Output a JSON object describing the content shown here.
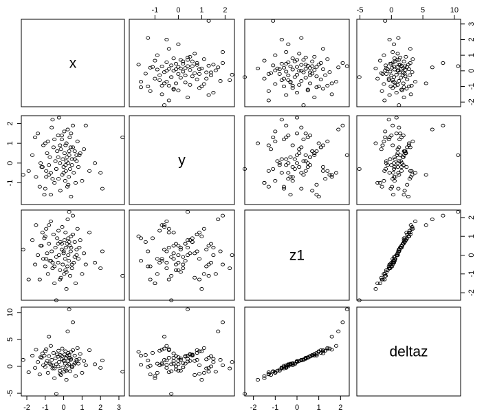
{
  "chart_data": {
    "type": "scatter",
    "variables": [
      "x",
      "y",
      "z1",
      "deltaz"
    ],
    "panel_labels": [
      "x",
      "y",
      "z1",
      "deltaz"
    ],
    "ranges": {
      "x": [
        -2.3,
        3.3
      ],
      "y": [
        -2.1,
        2.4
      ],
      "z1": [
        -2.4,
        2.4
      ],
      "deltaz": [
        -5.5,
        11.0
      ]
    },
    "ticks": {
      "x": {
        "values": [
          -2,
          -1,
          0,
          1,
          2,
          3
        ],
        "labels": [
          "-2",
          "-1",
          "0",
          "1",
          "2",
          "3"
        ]
      },
      "y": {
        "values": [
          -1,
          0,
          1,
          2
        ],
        "labels": [
          "-1",
          "0",
          "1",
          "2"
        ]
      },
      "z1": {
        "values": [
          -2,
          -1,
          0,
          1,
          2
        ],
        "labels": [
          "-2",
          "-1",
          "0",
          "1",
          "2"
        ]
      },
      "deltaz": {
        "values": [
          -5,
          0,
          5,
          10
        ],
        "labels": [
          "-5",
          "0",
          "5",
          "10"
        ]
      }
    },
    "top_axis_vars": [
      null,
      "y",
      null,
      "deltaz"
    ],
    "bottom_axis_vars": [
      "x",
      null,
      "z1",
      null
    ],
    "left_axis_vars": [
      null,
      "y",
      null,
      "deltaz"
    ],
    "right_axis_vars": [
      "x",
      null,
      "z1",
      null
    ],
    "points": {
      "x": [
        -2.2,
        -1.9,
        -1.7,
        -1.55,
        -1.5,
        -1.4,
        -1.3,
        -1.25,
        -1.15,
        -1.1,
        -1.05,
        -1.0,
        -0.95,
        -0.9,
        -0.85,
        -0.8,
        -0.75,
        -0.7,
        -0.65,
        -0.6,
        -0.55,
        -0.5,
        -0.45,
        -0.4,
        -0.35,
        -0.3,
        -0.28,
        -0.25,
        -0.2,
        -0.18,
        -0.15,
        -0.1,
        -0.08,
        -0.05,
        0.0,
        0.03,
        0.05,
        0.08,
        0.1,
        0.12,
        0.15,
        0.18,
        0.2,
        0.22,
        0.25,
        0.28,
        0.3,
        0.33,
        0.35,
        0.38,
        0.4,
        0.45,
        0.5,
        0.55,
        0.6,
        0.65,
        0.7,
        0.75,
        0.8,
        0.9,
        1.0,
        1.1,
        1.2,
        1.4,
        1.7,
        2.0,
        2.1,
        3.2,
        -1.0,
        -0.6,
        -0.3,
        0.1,
        0.4,
        0.7,
        -0.8,
        -0.2,
        0.25,
        0.6,
        -1.2,
        -0.5,
        0.0,
        0.5,
        -0.7,
        0.3,
        -0.4,
        0.15,
        0.85,
        -0.95,
        -0.1,
        0.45
      ],
      "y": [
        -0.6,
        -0.4,
        0.4,
        1.3,
        -0.7,
        1.5,
        -1.2,
        0.0,
        -0.2,
        0.9,
        -1.6,
        -1.3,
        -0.4,
        0.5,
        1.1,
        -0.1,
        0.3,
        -0.5,
        1.8,
        2.2,
        0.8,
        -1.0,
        0.1,
        -0.3,
        0.6,
        1.4,
        -0.8,
        2.3,
        0.0,
        -1.4,
        0.7,
        1.2,
        -0.6,
        0.2,
        -0.2,
        1.6,
        0.5,
        -0.9,
        0.9,
        -0.4,
        1.0,
        0.3,
        -1.2,
        1.7,
        0.0,
        -0.7,
        0.4,
        1.3,
        -0.3,
        0.8,
        -1.7,
        0.2,
        1.9,
        -0.5,
        0.6,
        -1.0,
        0.1,
        1.1,
        -0.2,
        0.5,
        -0.9,
        0.7,
        1.9,
        -0.4,
        0.0,
        -0.5,
        -1.3,
        1.3,
        1.0,
        -0.8,
        0.3,
        -0.1,
        1.5,
        0.4,
        -0.6,
        0.9,
        -1.1,
        0.2,
        -0.2,
        1.2,
        -0.5,
        0.8,
        -1.6,
        0.6,
        -0.3,
        0.1,
        0.4,
        -0.7,
        1.4,
        -0.1
      ],
      "z1": [
        0.3,
        -1.3,
        0.8,
        -0.5,
        1.6,
        0.0,
        -1.3,
        0.5,
        1.2,
        -0.2,
        0.9,
        -0.6,
        1.4,
        0.1,
        -1.0,
        0.6,
        -0.3,
        1.8,
        0.2,
        -0.7,
        1.1,
        -1.5,
        0.4,
        -0.1,
        0.9,
        -0.4,
        1.3,
        0.0,
        -0.8,
        0.7,
        -1.2,
        0.3,
        1.5,
        -0.5,
        0.1,
        -1.0,
        0.8,
        -0.2,
        1.2,
        0.4,
        -1.8,
        0.6,
        -0.6,
        1.9,
        0.0,
        -0.3,
        2.3,
        0.5,
        -1.1,
        0.2,
        1.0,
        -0.7,
        2.1,
        -0.4,
        0.7,
        -1.5,
        0.3,
        1.4,
        -0.2,
        0.8,
        -1.0,
        0.1,
        -0.5,
        1.2,
        -0.4,
        -0.7,
        0.2,
        -1.1,
        1.0,
        -0.4,
        0.6,
        -0.8,
        0.4,
        0.0,
        1.6,
        -1.3,
        0.9,
        -0.1,
        0.5,
        -0.6,
        0.2,
        1.1,
        -0.3,
        0.7,
        -2.4,
        -0.9,
        0.4,
        -0.2,
        0.6,
        -0.5
      ],
      "deltaz": [
        1.2,
        -1.1,
        2.0,
        -0.3,
        3.1,
        0.8,
        -1.5,
        1.7,
        2.4,
        0.2,
        2.0,
        -0.1,
        3.2,
        1.0,
        -1.2,
        1.9,
        0.5,
        3.8,
        1.2,
        -0.4,
        2.5,
        -2.2,
        1.5,
        0.4,
        2.2,
        0.0,
        2.9,
        0.8,
        -0.8,
        2.1,
        -1.6,
        1.3,
        3.3,
        -0.2,
        1.0,
        -1.0,
        2.2,
        0.5,
        2.8,
        1.6,
        -2.5,
        1.9,
        0.1,
        6.5,
        1.0,
        0.4,
        10.6,
        1.6,
        -0.9,
        1.2,
        2.7,
        -0.2,
        8.2,
        0.3,
        2.0,
        -1.8,
        1.2,
        3.4,
        0.5,
        2.3,
        -1.2,
        1.0,
        0.2,
        3.0,
        0.4,
        -0.3,
        1.1,
        -1.0,
        2.8,
        0.2,
        1.8,
        -0.6,
        1.4,
        0.9,
        5.5,
        -1.4,
        2.5,
        0.6,
        1.6,
        -0.4,
        1.1,
        3.0,
        0.3,
        2.1,
        -5.1,
        -0.8,
        1.4,
        0.6,
        1.9,
        0.0
      ]
    }
  }
}
